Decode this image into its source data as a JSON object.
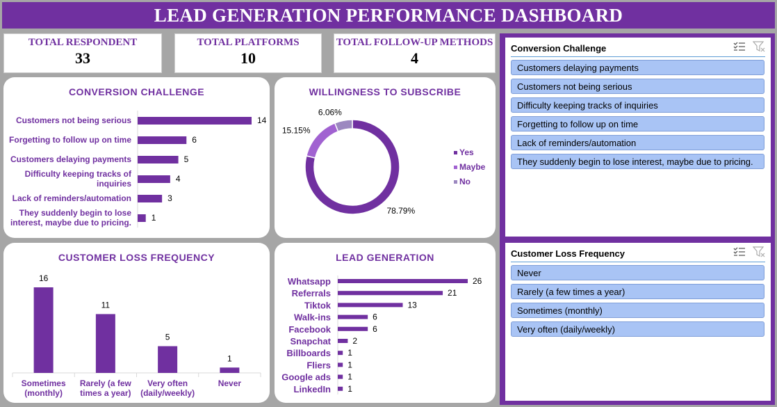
{
  "dashboard": {
    "title": "LEAD GENERATION PERFORMANCE DASHBOARD"
  },
  "kpis": [
    {
      "label": "TOTAL RESPONDENT",
      "value": "33"
    },
    {
      "label": "TOTAL PLATFORMS",
      "value": "10"
    },
    {
      "label": "TOTAL FOLLOW-UP METHODS",
      "value": "4"
    }
  ],
  "colors": {
    "accent": "#7030a0",
    "maybe": "#a162d1",
    "no": "#9c88c0",
    "slicer_item": "#a9c4f5"
  },
  "chart_data": [
    {
      "type": "bar",
      "orientation": "horizontal",
      "title": "CONVERSION CHALLENGE",
      "categories": [
        [
          "Customers not being serious"
        ],
        [
          "Forgetting to follow up on time"
        ],
        [
          "Customers delaying payments"
        ],
        [
          "Difficulty keeping tracks of",
          "inquiries"
        ],
        [
          "Lack of reminders/automation"
        ],
        [
          "They suddenly begin to lose",
          "interest, maybe due to pricing."
        ]
      ],
      "values": [
        14,
        6,
        5,
        4,
        3,
        1
      ],
      "data_labels": true,
      "grid": false
    },
    {
      "type": "pie",
      "variant": "doughnut",
      "title": "WILLINGNESS TO SUBSCRIBE",
      "slices": [
        {
          "name": "Yes",
          "percent": 78.79,
          "label": "78.79%"
        },
        {
          "name": "Maybe",
          "percent": 15.15,
          "label": "15.15%"
        },
        {
          "name": "No",
          "percent": 6.06,
          "label": "6.06%"
        }
      ],
      "legend": "right"
    },
    {
      "type": "bar",
      "orientation": "vertical",
      "title": "CUSTOMER LOSS FREQUENCY",
      "categories": [
        [
          "Sometimes",
          "(monthly)"
        ],
        [
          "Rarely (a few",
          "times a year)"
        ],
        [
          "Very often",
          "(daily/weekly)"
        ],
        [
          "Never"
        ]
      ],
      "values": [
        16,
        11,
        5,
        1
      ],
      "data_labels": true,
      "grid": false
    },
    {
      "type": "bar",
      "orientation": "horizontal",
      "title": "LEAD GENERATION",
      "categories": [
        "Whatsapp",
        "Referrals",
        "Tiktok",
        "Walk-ins",
        "Facebook",
        "Snapchat",
        "Billboards",
        "Fliers",
        "Google ads",
        "LinkedIn"
      ],
      "values": [
        26,
        21,
        13,
        6,
        6,
        2,
        1,
        1,
        1,
        1
      ],
      "data_labels": true,
      "grid": false
    }
  ],
  "slicers": [
    {
      "title": "Conversion Challenge",
      "items": [
        "Customers delaying payments",
        "Customers not being serious",
        "Difficulty keeping tracks of inquiries",
        "Forgetting to follow up on time",
        "Lack of reminders/automation",
        "They suddenly begin to lose interest, maybe due to pricing."
      ]
    },
    {
      "title": "Customer Loss Frequency",
      "items": [
        "Never",
        "Rarely (a few times a year)",
        "Sometimes (monthly)",
        "Very often (daily/weekly)"
      ]
    }
  ]
}
